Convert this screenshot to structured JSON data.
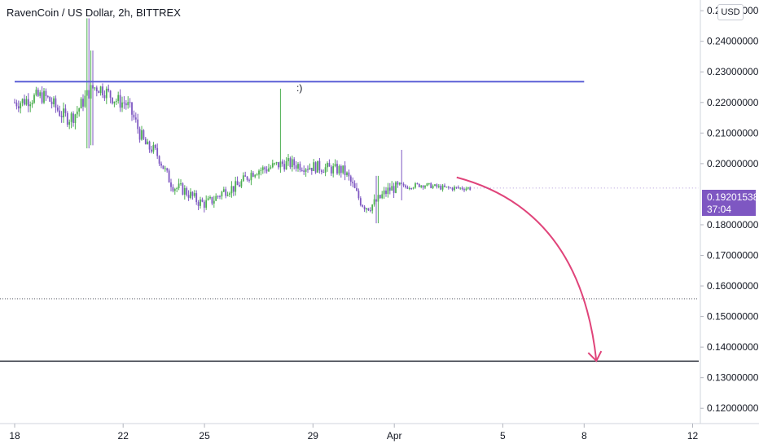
{
  "header": {
    "title": "RavenCoin / US Dollar, 2h, BITTREX",
    "currency_button": "USD"
  },
  "price_tag": {
    "price": "0.19201538",
    "countdown": "37:04",
    "color": "#7e57c2"
  },
  "annotation_text": ":)",
  "colors": {
    "up": "#4caf50",
    "down": "#7e57c2",
    "resistance_line": "#5b5fd6",
    "arrow": "#e0447a",
    "support_line": "#2a2e39"
  },
  "chart_data": {
    "type": "candlestick",
    "x_axis": {
      "tick_labels": [
        "18",
        "22",
        "25",
        "29",
        "Apr",
        "5",
        "8",
        "12"
      ]
    },
    "y_axis": {
      "range": [
        0.115,
        0.2535
      ],
      "tick_labels": [
        "0.25000000",
        "0.24000000",
        "0.23000000",
        "0.22000000",
        "0.21000000",
        "0.20000000",
        "0.18000000",
        "0.17000000",
        "0.16000000",
        "0.15000000",
        "0.14000000",
        "0.13000000",
        "0.12000000"
      ]
    },
    "last_price": 0.19201538,
    "series_anchors": [
      {
        "x": "18",
        "y": 0.22
      },
      {
        "x": "19",
        "y": 0.222
      },
      {
        "x": "20",
        "y": 0.215
      },
      {
        "x": "21",
        "y": 0.225
      },
      {
        "x": "22",
        "y": 0.22
      },
      {
        "x": "23",
        "y": 0.205
      },
      {
        "x": "24",
        "y": 0.192
      },
      {
        "x": "25",
        "y": 0.187
      },
      {
        "x": "26",
        "y": 0.192
      },
      {
        "x": "27",
        "y": 0.198
      },
      {
        "x": "28",
        "y": 0.2
      },
      {
        "x": "29",
        "y": 0.199
      },
      {
        "x": "30",
        "y": 0.198
      },
      {
        "x": "31",
        "y": 0.186
      },
      {
        "x": "Apr",
        "y": 0.192
      },
      {
        "x": "2",
        "y": 0.193
      },
      {
        "x": "3",
        "y": 0.192
      }
    ],
    "annotations": [
      {
        "type": "resistance-line",
        "x_from": "18",
        "x_to": "8",
        "y": 0.2268
      },
      {
        "type": "dotted-horizontal",
        "y": 0.1558
      },
      {
        "type": "support-line",
        "y": 0.1354
      },
      {
        "type": "arrow",
        "from": {
          "x": "3",
          "y": 0.1955
        },
        "to": {
          "x": "8",
          "y": 0.1355
        }
      },
      {
        "type": "text",
        "text": ":)",
        "x": "28",
        "y": 0.2247
      }
    ]
  }
}
